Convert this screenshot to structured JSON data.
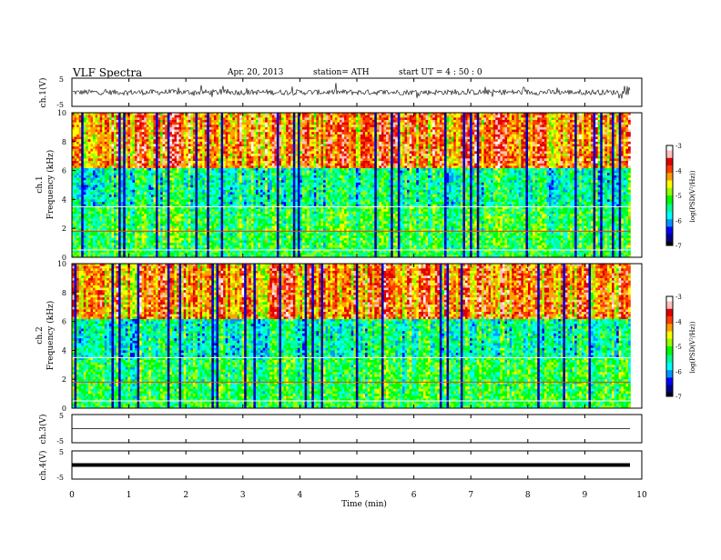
{
  "header": {
    "title": "VLF  Spectra",
    "date": "Apr. 20, 2013",
    "station": "station= ATH",
    "start": "start  UT  =   4  : 50 : 0"
  },
  "chart_data": [
    {
      "name": "ch1-waveform",
      "type": "line",
      "ylabel": "ch.1(V)",
      "ylim": [
        -5,
        5
      ],
      "ytick_labels": [
        "5",
        "-5"
      ],
      "x_range_min": [
        0,
        9.8
      ],
      "approx_level": 0,
      "approx_amplitude": 1.2,
      "color": "#000000"
    },
    {
      "name": "ch1-spectrogram",
      "type": "heatmap",
      "ylabel": "ch.1\nFrequency  (kHz)",
      "ylabel_channel": "ch.1",
      "ylabel_freq": "Frequency  (kHz)",
      "ylim": [
        0,
        10
      ],
      "ytick_labels": [
        "0",
        "2",
        "4",
        "6",
        "8",
        "10"
      ],
      "x_range_min": [
        0,
        9.8
      ],
      "colorbar": {
        "label": "log(PSD(V²/Hz))",
        "range": [
          -7,
          -3
        ],
        "tick_labels": [
          "-7",
          "-6",
          "-5",
          "-4",
          "-3"
        ]
      }
    },
    {
      "name": "ch2-spectrogram",
      "type": "heatmap",
      "ylabel": "ch.2\nFrequency  (kHz)",
      "ylabel_channel": "ch.2",
      "ylabel_freq": "Frequency  (kHz)",
      "ylim": [
        0,
        10
      ],
      "ytick_labels": [
        "0",
        "2",
        "4",
        "6",
        "8",
        "10"
      ],
      "x_range_min": [
        0,
        9.8
      ],
      "colorbar": {
        "label": "log(PSD(V²/Hz))",
        "range": [
          -7,
          -3
        ],
        "tick_labels": [
          "-7",
          "-6",
          "-5",
          "-4",
          "-3"
        ]
      }
    },
    {
      "name": "ch3-waveform",
      "type": "line",
      "ylabel": "ch.3(V)",
      "ylim": [
        -5,
        5
      ],
      "ytick_labels": [
        "5",
        "-5"
      ],
      "approx_level": 0,
      "color": "#000000"
    },
    {
      "name": "ch4-waveform",
      "type": "line",
      "ylabel": "ch.4(V)",
      "ylim": [
        -5,
        5
      ],
      "ytick_labels": [
        "5",
        "-5"
      ],
      "approx_level": 0,
      "color": "#000000"
    }
  ],
  "xaxis": {
    "label": "Time  (min)",
    "range": [
      0,
      10
    ],
    "tick_labels": [
      "0",
      "1",
      "2",
      "3",
      "4",
      "5",
      "6",
      "7",
      "8",
      "9",
      "10"
    ]
  },
  "colors": {
    "scale": [
      "#000000",
      "#00008c",
      "#0000ff",
      "#0096ff",
      "#00ffff",
      "#00ff96",
      "#00ff00",
      "#96ff00",
      "#ffff00",
      "#ffa000",
      "#ff3c00",
      "#e00000",
      "#ffc0c0",
      "#ffffff"
    ]
  }
}
